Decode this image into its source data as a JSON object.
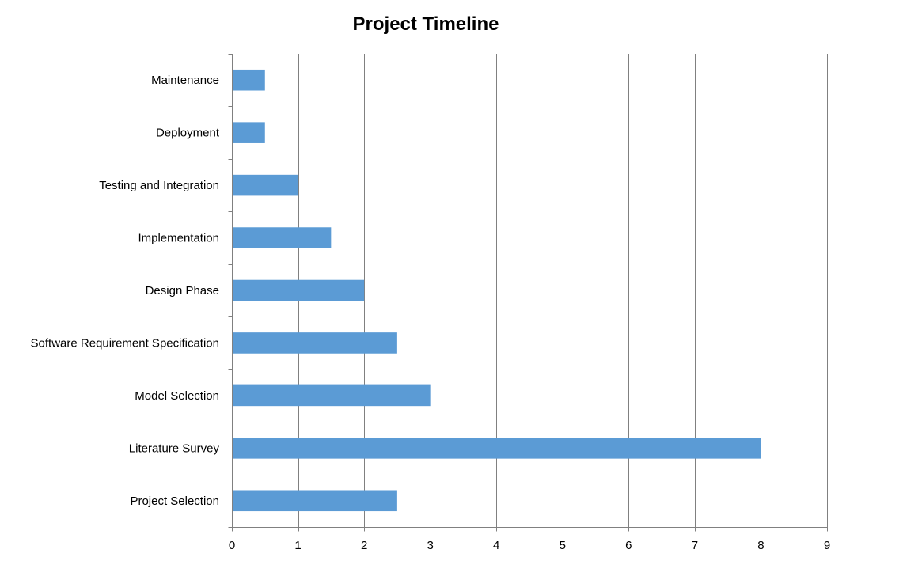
{
  "chart_data": {
    "type": "bar",
    "orientation": "horizontal",
    "title": "Project Timeline",
    "xlabel": "",
    "ylabel": "",
    "categories": [
      "Project Selection",
      "Literature Survey",
      "Model Selection",
      "Software Requirement Specification",
      "Design Phase",
      "Implementation",
      "Testing and Integration",
      "Deployment",
      "Maintenance"
    ],
    "values": [
      2.5,
      8,
      3,
      2.5,
      2,
      1.5,
      1,
      0.5,
      0.5
    ],
    "xlim": [
      0,
      9
    ],
    "xticks": [
      0,
      1,
      2,
      3,
      4,
      5,
      6,
      7,
      8,
      9
    ],
    "grid": "vertical",
    "legend": "none",
    "bar_color": "#5B9BD5"
  }
}
